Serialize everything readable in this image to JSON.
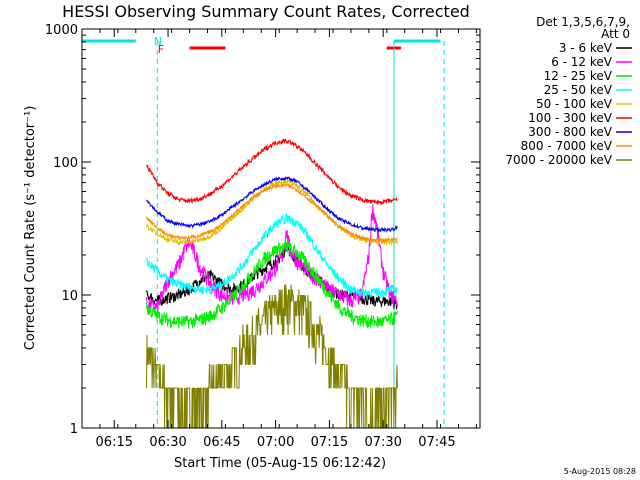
{
  "chart_data": {
    "type": "line",
    "title": "HESSI Observing Summary Count Rates, Corrected",
    "xlabel": "Start Time (05-Aug-15 06:12:42)",
    "ylabel": "Corrected Count Rate (s⁻¹ detector⁻¹)",
    "x_ticks": [
      "06:15",
      "06:30",
      "06:45",
      "07:00",
      "07:15",
      "07:30",
      "07:45"
    ],
    "x_tick_minutes": [
      15,
      30,
      45,
      60,
      75,
      90,
      105
    ],
    "x_range_minutes": [
      6,
      117
    ],
    "data_start_minute": 24,
    "data_end_minute": 94,
    "y_scale": "log",
    "y_ticks": [
      "1",
      "10",
      "100",
      "1000"
    ],
    "y_tick_values": [
      1,
      10,
      100,
      1000
    ],
    "ylim": [
      1,
      1000
    ],
    "legend_header": [
      "Det 1,3,5,6,7,9,",
      "Att 0"
    ],
    "legend_placement": "right",
    "timestamp": "5-Aug-2015 08:28",
    "flags": {
      "night_label": "N",
      "flare_label": "F",
      "night_color": "#00e5e5",
      "flare_color": "#ff0000",
      "night_bars": [
        [
          6,
          21
        ],
        [
          93,
          106
        ]
      ],
      "flare_bars": [
        [
          36,
          46
        ],
        [
          91,
          95
        ]
      ],
      "dashed_lines_minutes": [
        27,
        107
      ],
      "solid_lines_minutes": [
        93
      ]
    },
    "series": [
      {
        "name": "3 - 6 keV",
        "color": "#000000",
        "x": [
          24,
          27,
          30,
          33,
          36,
          39,
          42,
          45,
          48,
          51,
          54,
          57,
          60,
          62,
          63,
          64,
          66,
          69,
          72,
          75,
          78,
          81,
          84,
          87,
          90,
          92,
          94
        ],
        "y": [
          10,
          9,
          9.5,
          10,
          11,
          13,
          14,
          12,
          11,
          12,
          14,
          16,
          18,
          20,
          24,
          21,
          18,
          15,
          13,
          11,
          10,
          10,
          9.5,
          9,
          9,
          9,
          8.5
        ]
      },
      {
        "name": "6 - 12 keV",
        "color": "#ff00ff",
        "x": [
          24,
          27,
          30,
          33,
          35,
          36,
          37,
          39,
          42,
          45,
          48,
          51,
          54,
          57,
          60,
          62,
          63,
          64,
          66,
          69,
          72,
          75,
          78,
          81,
          84,
          86,
          87,
          88,
          90,
          92,
          94
        ],
        "y": [
          8.5,
          8,
          13,
          17,
          23,
          25,
          22,
          16,
          12,
          10,
          9.5,
          10,
          11,
          13,
          16,
          20,
          30,
          22,
          18,
          15,
          13,
          11,
          10,
          9,
          10,
          20,
          45,
          35,
          15,
          10,
          9
        ]
      },
      {
        "name": "12 - 25 keV",
        "color": "#00ee00",
        "x": [
          24,
          27,
          30,
          33,
          36,
          39,
          42,
          45,
          48,
          51,
          54,
          57,
          60,
          63,
          66,
          69,
          72,
          75,
          78,
          81,
          84,
          87,
          90,
          92,
          94
        ],
        "y": [
          8,
          7,
          6.5,
          6.3,
          6.3,
          6.5,
          7,
          8,
          9.5,
          12,
          15,
          19,
          22,
          23,
          21,
          17,
          13,
          10,
          8,
          7,
          6.5,
          6.3,
          6.3,
          6.5,
          7
        ]
      },
      {
        "name": "25 - 50 keV",
        "color": "#00ffff",
        "x": [
          24,
          27,
          30,
          33,
          36,
          39,
          42,
          45,
          48,
          51,
          54,
          57,
          60,
          63,
          66,
          69,
          72,
          75,
          78,
          81,
          84,
          87,
          90,
          92,
          94
        ],
        "y": [
          18,
          15,
          13,
          12,
          11.5,
          11,
          11,
          12,
          14,
          17,
          22,
          28,
          34,
          38,
          35,
          28,
          21,
          16,
          13,
          11,
          10.5,
          10.5,
          10.5,
          11,
          11
        ]
      },
      {
        "name": "50 - 100 keV",
        "color": "#e0c000",
        "x": [
          24,
          27,
          30,
          33,
          36,
          39,
          42,
          45,
          48,
          51,
          54,
          57,
          60,
          63,
          66,
          69,
          72,
          75,
          78,
          81,
          84,
          87,
          90,
          92,
          94
        ],
        "y": [
          33,
          29,
          26,
          25,
          25,
          26,
          28,
          32,
          38,
          45,
          54,
          62,
          70,
          72,
          66,
          56,
          46,
          38,
          32,
          28,
          26,
          25,
          25,
          25,
          25
        ]
      },
      {
        "name": "100 - 300 keV",
        "color": "#ff0000",
        "x": [
          24,
          27,
          30,
          33,
          36,
          39,
          42,
          45,
          48,
          51,
          54,
          57,
          60,
          63,
          66,
          69,
          72,
          75,
          78,
          81,
          84,
          87,
          90,
          92,
          94
        ],
        "y": [
          95,
          70,
          58,
          52,
          51,
          53,
          58,
          66,
          78,
          92,
          108,
          125,
          140,
          145,
          132,
          112,
          92,
          76,
          63,
          56,
          52,
          50,
          50,
          51,
          52
        ]
      },
      {
        "name": "300 - 800 keV",
        "color": "#0000ff",
        "x": [
          24,
          27,
          30,
          33,
          36,
          39,
          42,
          45,
          48,
          51,
          54,
          57,
          60,
          63,
          66,
          69,
          72,
          75,
          78,
          81,
          84,
          87,
          90,
          92,
          94
        ],
        "y": [
          52,
          42,
          36,
          34,
          33,
          34,
          36,
          40,
          46,
          53,
          61,
          68,
          74,
          76,
          71,
          61,
          51,
          43,
          37,
          34,
          32,
          31,
          31,
          31,
          32
        ]
      },
      {
        "name": "800 - 7000 keV",
        "color": "#ff8c00",
        "x": [
          24,
          27,
          30,
          33,
          36,
          39,
          42,
          45,
          48,
          51,
          54,
          57,
          60,
          63,
          66,
          69,
          72,
          75,
          78,
          81,
          84,
          87,
          90,
          92,
          94
        ],
        "y": [
          38,
          32,
          28,
          27,
          27,
          28,
          30,
          34,
          40,
          47,
          55,
          62,
          66,
          67,
          62,
          53,
          45,
          38,
          32,
          29,
          27,
          26,
          26,
          26,
          27
        ]
      },
      {
        "name": "7000 - 20000 keV",
        "color": "#808000",
        "x": [
          24,
          27,
          30,
          33,
          36,
          39,
          42,
          45,
          48,
          51,
          54,
          57,
          60,
          63,
          66,
          69,
          72,
          75,
          78,
          81,
          84,
          87,
          90,
          92,
          94
        ],
        "y": [
          4,
          2.5,
          1.8,
          1.6,
          1.5,
          1.6,
          1.9,
          2.4,
          3,
          4,
          5,
          6.5,
          8,
          9,
          8.5,
          7,
          5,
          3.5,
          2.5,
          1.8,
          1.5,
          1.4,
          1.4,
          1.6,
          2
        ]
      }
    ]
  }
}
